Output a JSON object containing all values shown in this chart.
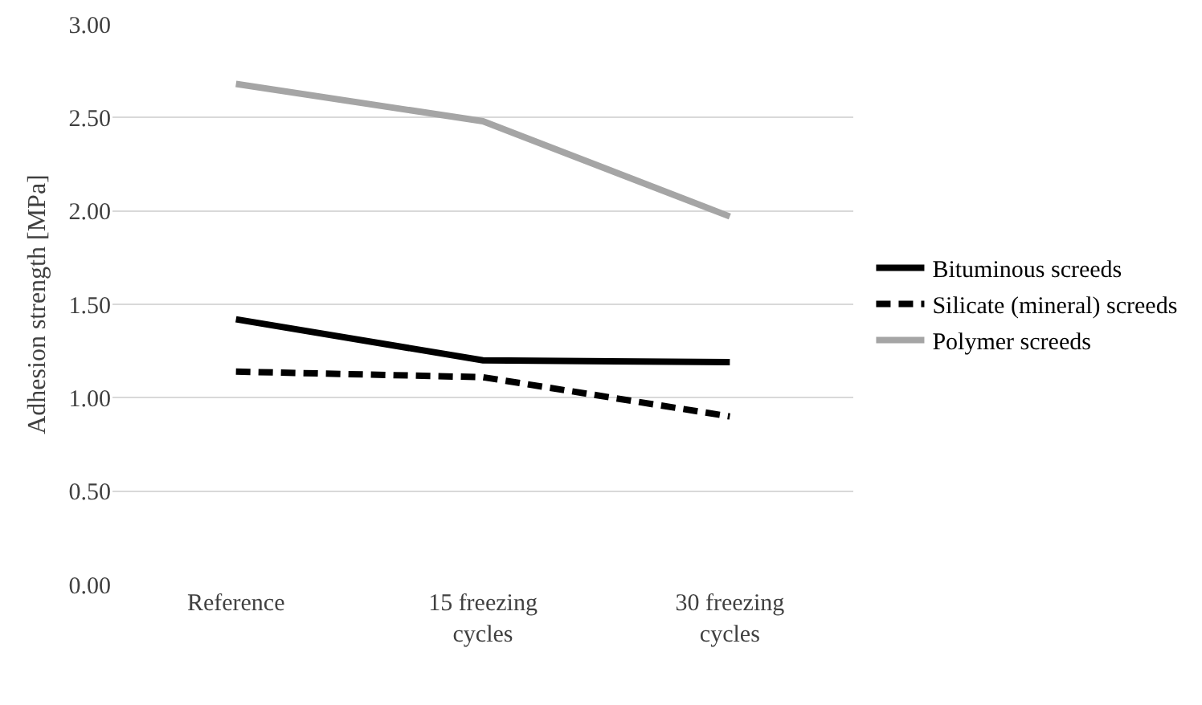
{
  "chart_data": {
    "type": "line",
    "ylabel": "Adhesion strength [MPa]",
    "categories": [
      "Reference",
      "15 freezing cycles",
      "30 freezing cycles"
    ],
    "series": [
      {
        "name": "Bituminous screeds",
        "color": "#000000",
        "line_style": "solid",
        "values": [
          1.42,
          1.2,
          1.19
        ]
      },
      {
        "name": "Silicate (mineral) screeds",
        "color": "#000000",
        "line_style": "dashed",
        "values": [
          1.14,
          1.11,
          0.9
        ]
      },
      {
        "name": "Polymer screeds",
        "color": "#a5a5a5",
        "line_style": "solid",
        "values": [
          2.68,
          2.48,
          1.97
        ]
      }
    ],
    "ylim": [
      0,
      3
    ],
    "yticks": [
      {
        "value": 0,
        "label": "0.00"
      },
      {
        "value": 0.5,
        "label": "0.50"
      },
      {
        "value": 1,
        "label": "1.00"
      },
      {
        "value": 1.5,
        "label": "1.50"
      },
      {
        "value": 2,
        "label": "2.00"
      },
      {
        "value": 2.5,
        "label": "2.50"
      },
      {
        "value": 3,
        "label": "3.00"
      }
    ],
    "grid": "y",
    "legend": "right",
    "marker": "none"
  }
}
